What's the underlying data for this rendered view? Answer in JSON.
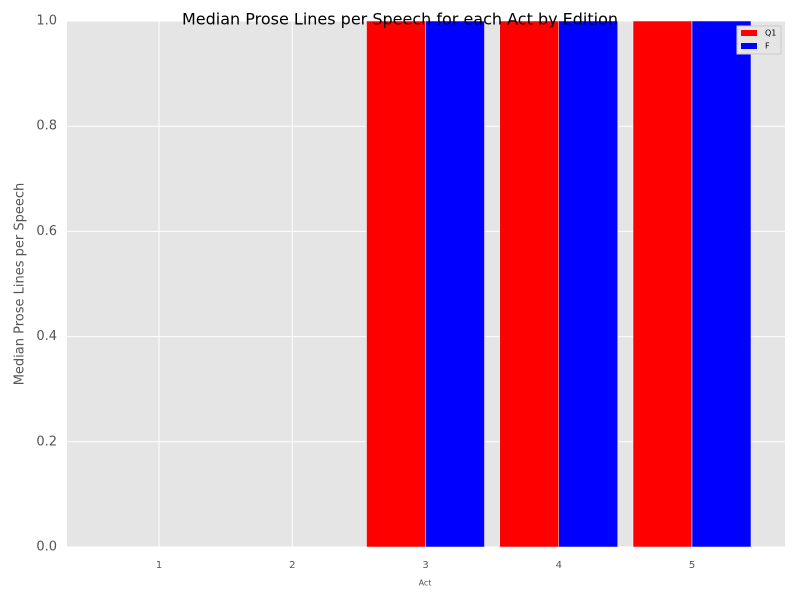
{
  "chart_data": {
    "type": "bar",
    "title": "Median Prose Lines per Speech for each Act by Edition",
    "x_label": "Act",
    "y_label": "Median Prose Lines per Speech",
    "categories": [
      "1",
      "2",
      "3",
      "4",
      "5"
    ],
    "series": [
      {
        "name": "Q1",
        "color": "#ff0000",
        "values": [
          0,
          0,
          1,
          1,
          1
        ]
      },
      {
        "name": "F",
        "color": "#0000ff",
        "values": [
          0,
          0,
          1,
          1,
          1
        ]
      }
    ],
    "ylim": [
      0,
      1
    ],
    "yticks": [
      {
        "value": 0,
        "label": "0.0"
      },
      0.2,
      0.4,
      0.6,
      0.8,
      {
        "value": 1,
        "label": "1.0"
      }
    ],
    "grid": true,
    "legend": "upper right"
  }
}
